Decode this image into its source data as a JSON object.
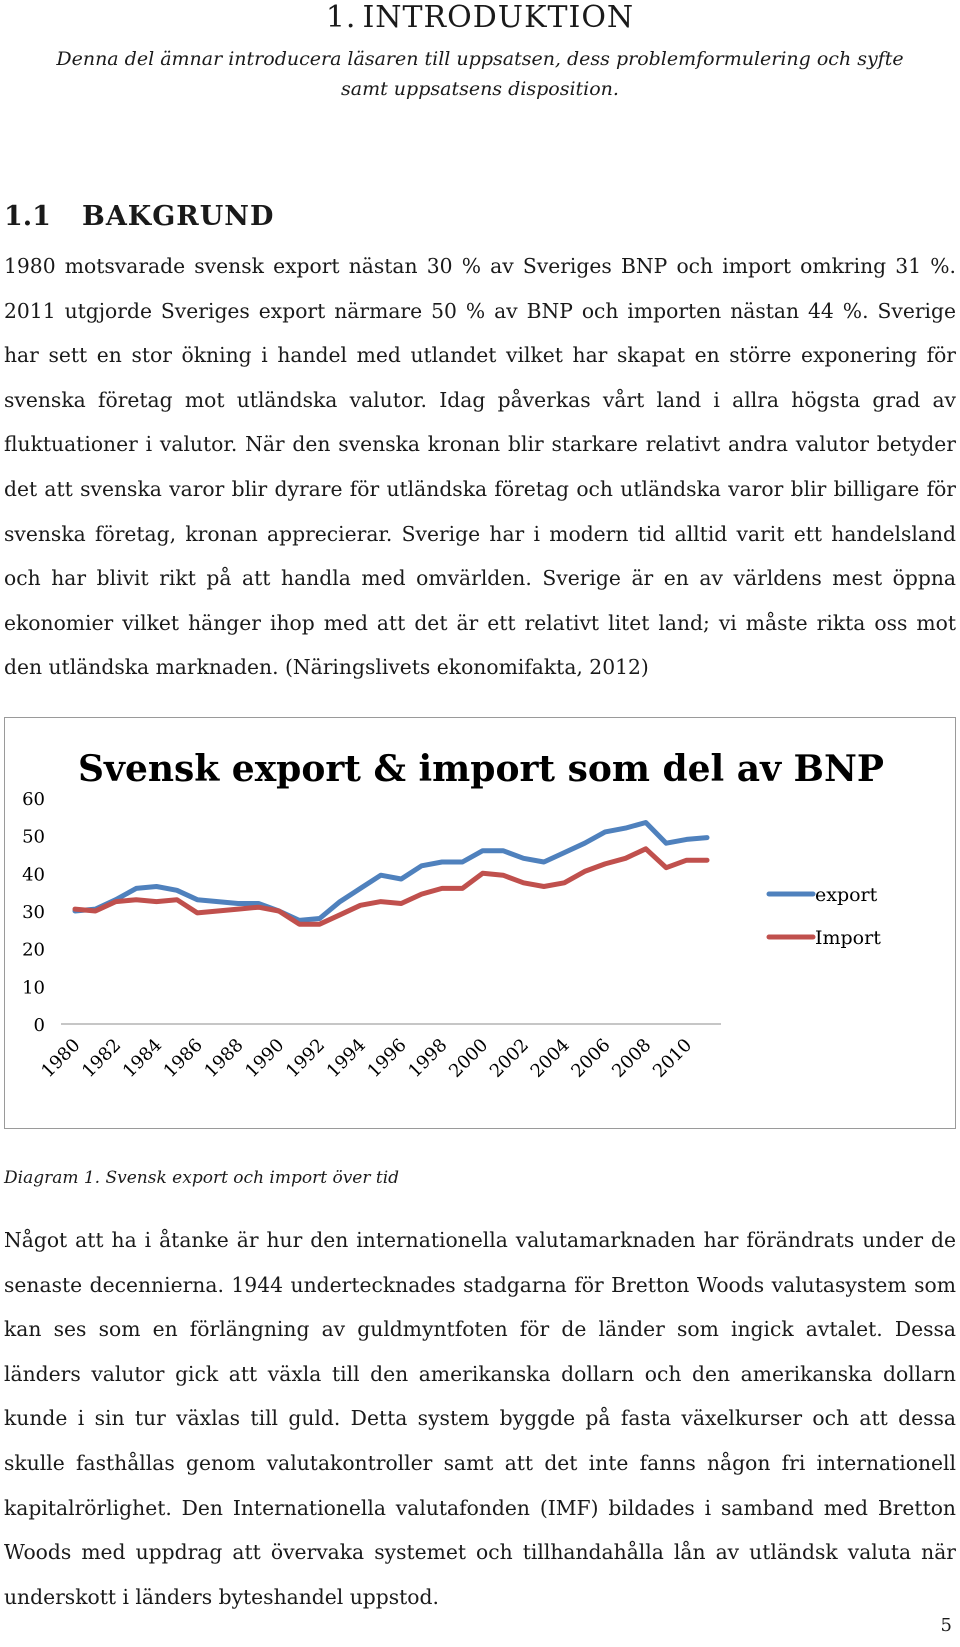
{
  "chapter": {
    "number": "1.",
    "title": "INTRODUKTION"
  },
  "intro": "Denna del ämnar introducera läsaren till uppsatsen, dess problemformulering och syfte samt uppsatsens disposition.",
  "section": {
    "number": "1.1",
    "title": "BAKGRUND"
  },
  "paragraph1": "1980 motsvarade svensk export nästan 30 % av Sveriges BNP och import omkring 31 %. 2011 utgjorde Sveriges export närmare 50 % av BNP och importen nästan 44 %. Sverige har sett en stor ökning i handel med utlandet vilket har skapat en större exponering för svenska företag mot utländska valutor. Idag påverkas vårt land i allra högsta grad av fluktuationer i valutor. När den svenska kronan blir starkare relativt andra valutor betyder det att svenska varor blir dyrare för utländska företag och utländska varor blir billigare för svenska företag, kronan apprecierar. Sverige har i modern tid alltid varit ett handelsland och har blivit rikt på att handla med omvärlden. Sverige är en av världens mest öppna ekonomier vilket hänger ihop med att det är ett relativt litet land; vi måste rikta oss mot den utländska marknaden. (Näringslivets ekonomifakta, 2012)",
  "chart_data": {
    "type": "line",
    "title": "Svensk export & import som del av BNP",
    "xlabel": "",
    "ylabel": "",
    "ylim": [
      0,
      60
    ],
    "yticks": [
      "0",
      "10",
      "20",
      "30",
      "40",
      "50",
      "60"
    ],
    "x": [
      1980,
      1981,
      1982,
      1983,
      1984,
      1985,
      1986,
      1987,
      1988,
      1989,
      1990,
      1991,
      1992,
      1993,
      1994,
      1995,
      1996,
      1997,
      1998,
      1999,
      2000,
      2001,
      2002,
      2003,
      2004,
      2005,
      2006,
      2007,
      2008,
      2009,
      2010,
      2011
    ],
    "xtick_labels": [
      "1980",
      "1982",
      "1984",
      "1986",
      "1988",
      "1990",
      "1992",
      "1994",
      "1996",
      "1998",
      "2000",
      "2002",
      "2004",
      "2006",
      "2008",
      "2010"
    ],
    "legend_position": "right",
    "grid": false,
    "series": [
      {
        "name": "export",
        "color": "#4F81BD",
        "values": [
          30,
          30.5,
          33,
          36,
          36.5,
          35.5,
          33,
          32.5,
          32,
          32,
          30,
          27.5,
          28,
          32.5,
          36,
          39.5,
          38.5,
          42,
          43,
          43,
          46,
          46,
          44,
          43,
          45.5,
          48,
          51,
          52,
          53.5,
          48,
          49,
          49.5
        ]
      },
      {
        "name": "Import",
        "color": "#C0504D",
        "values": [
          30.5,
          30,
          32.5,
          33,
          32.5,
          33,
          29.5,
          30,
          30.5,
          31,
          30,
          26.5,
          26.5,
          29,
          31.5,
          32.5,
          32,
          34.5,
          36,
          36,
          40,
          39.5,
          37.5,
          36.5,
          37.5,
          40.5,
          42.5,
          44,
          46.5,
          41.5,
          43.5,
          43.5
        ]
      }
    ]
  },
  "caption": "Diagram 1. Svensk export och import över tid",
  "paragraph2": "Något att ha i åtanke är hur den internationella valutamarknaden har förändrats under de senaste decennierna. 1944 undertecknades stadgarna för Bretton Woods valutasystem som kan ses som en förlängning av guldmyntfoten för de länder som ingick avtalet. Dessa länders valutor gick att växla till den amerikanska dollarn och den amerikanska dollarn kunde i sin tur växlas till guld. Detta system byggde på fasta växelkurser och att dessa skulle fasthållas genom valutakontroller samt att det inte fanns någon fri internationell kapitalrörlighet. Den Internationella valutafonden (IMF) bildades i samband med Bretton Woods med uppdrag att övervaka systemet och tillhandahålla lån av utländsk valuta när underskott i länders byteshandel uppstod.",
  "page_number": "5"
}
